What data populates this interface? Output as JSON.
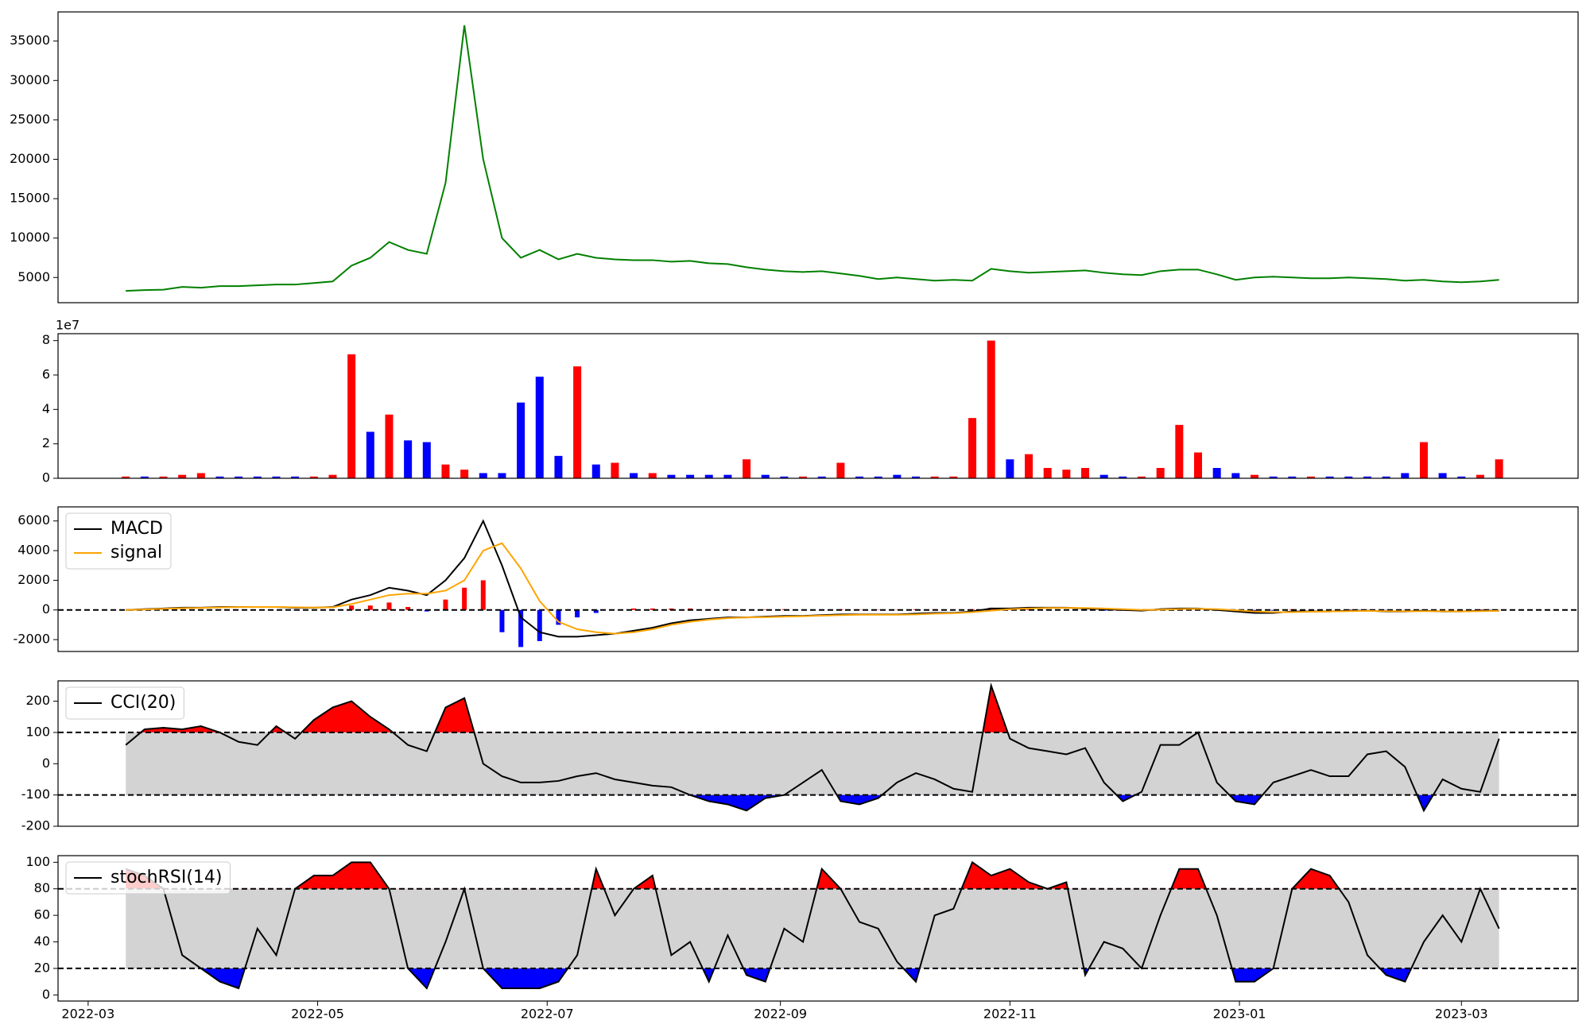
{
  "chart_data": [
    {
      "type": "line",
      "ylim": [
        1800,
        38700
      ],
      "yticks": [
        5000,
        10000,
        15000,
        20000,
        25000,
        30000,
        35000
      ],
      "series": [
        {
          "color": "green",
          "values": [
            3300,
            3400,
            3450,
            3800,
            3700,
            3900,
            3900,
            4000,
            4100,
            4100,
            4300,
            4500,
            6500,
            7500,
            9500,
            8500,
            8000,
            17000,
            37000,
            20000,
            10000,
            7500,
            8500,
            7300,
            8000,
            7500,
            7300,
            7200,
            7200,
            7000,
            7100,
            6800,
            6700,
            6300,
            6000,
            5800,
            5700,
            5800,
            5500,
            5200,
            4800,
            5000,
            4800,
            4600,
            4700,
            4600,
            6100,
            5800,
            5600,
            5700,
            5800,
            5900,
            5600,
            5400,
            5300,
            5800,
            6000,
            6000,
            5400,
            4700,
            5000,
            5100,
            5000,
            4900,
            4900,
            5000,
            4900,
            4800,
            4600,
            4700,
            4500,
            4400,
            4500,
            4700
          ]
        }
      ]
    },
    {
      "type": "bar",
      "offset_text": "1e7",
      "ylim": [
        0,
        8.4
      ],
      "yticks": [
        0,
        2,
        4,
        6,
        8
      ],
      "values": [
        0.1,
        0.1,
        0.1,
        0.2,
        0.3,
        0.1,
        0.1,
        0.1,
        0.1,
        0.1,
        0.1,
        0.2,
        7.2,
        2.7,
        3.7,
        2.2,
        2.1,
        0.8,
        0.5,
        0.3,
        0.3,
        4.4,
        5.9,
        1.3,
        6.5,
        0.8,
        0.9,
        0.3,
        0.3,
        0.2,
        0.2,
        0.2,
        0.2,
        1.1,
        0.2,
        0.1,
        0.1,
        0.1,
        0.9,
        0.1,
        0.1,
        0.2,
        0.1,
        0.1,
        0.1,
        3.5,
        8.0,
        1.1,
        1.4,
        0.6,
        0.5,
        0.6,
        0.2,
        0.1,
        0.1,
        0.6,
        3.1,
        1.5,
        0.6,
        0.3,
        0.2,
        0.1,
        0.1,
        0.1,
        0.1,
        0.1,
        0.1,
        0.1,
        0.3,
        2.1,
        0.3,
        0.1,
        0.2,
        1.1
      ],
      "colors": [
        "red",
        "blue",
        "red",
        "red",
        "red",
        "blue",
        "blue",
        "blue",
        "blue",
        "blue",
        "red",
        "red",
        "red",
        "blue",
        "red",
        "blue",
        "blue",
        "red",
        "red",
        "blue",
        "blue",
        "blue",
        "blue",
        "blue",
        "red",
        "blue",
        "red",
        "blue",
        "red",
        "blue",
        "blue",
        "blue",
        "blue",
        "red",
        "blue",
        "blue",
        "red",
        "blue",
        "red",
        "blue",
        "blue",
        "blue",
        "blue",
        "red",
        "red",
        "red",
        "red",
        "blue",
        "red",
        "red",
        "red",
        "red",
        "blue",
        "blue",
        "red",
        "red",
        "red",
        "red",
        "blue",
        "blue",
        "red",
        "blue",
        "blue",
        "red",
        "blue",
        "blue",
        "blue",
        "blue",
        "blue",
        "red",
        "blue",
        "blue",
        "red",
        "red"
      ]
    },
    {
      "type": "line",
      "ylim": [
        -2800,
        6950
      ],
      "yticks": [
        -2000,
        0,
        2000,
        4000,
        6000
      ],
      "hlines": [
        0
      ],
      "series": [
        {
          "name": "MACD",
          "color": "black",
          "values": [
            0,
            50,
            100,
            150,
            150,
            200,
            200,
            200,
            200,
            150,
            150,
            200,
            700,
            1000,
            1500,
            1300,
            1000,
            2000,
            3500,
            6000,
            3000,
            -500,
            -1500,
            -1800,
            -1800,
            -1700,
            -1600,
            -1400,
            -1200,
            -900,
            -700,
            -600,
            -500,
            -500,
            -450,
            -400,
            -400,
            -350,
            -300,
            -300,
            -300,
            -300,
            -250,
            -200,
            -200,
            -100,
            100,
            100,
            150,
            150,
            150,
            100,
            50,
            0,
            -50,
            50,
            100,
            100,
            0,
            -100,
            -200,
            -200,
            -100,
            -100,
            -100,
            -50,
            -50,
            -100,
            -100,
            -50,
            -100,
            -100,
            -50,
            -50
          ]
        },
        {
          "name": "signal",
          "color": "orange",
          "values": [
            0,
            30,
            80,
            120,
            140,
            170,
            190,
            200,
            200,
            180,
            160,
            180,
            400,
            700,
            1000,
            1100,
            1100,
            1300,
            2000,
            4000,
            4500,
            2800,
            600,
            -800,
            -1300,
            -1500,
            -1600,
            -1500,
            -1300,
            -1000,
            -800,
            -650,
            -550,
            -500,
            -480,
            -450,
            -420,
            -380,
            -350,
            -320,
            -320,
            -320,
            -300,
            -250,
            -220,
            -150,
            -50,
            50,
            100,
            130,
            140,
            130,
            100,
            50,
            0,
            20,
            60,
            80,
            50,
            -20,
            -100,
            -150,
            -150,
            -120,
            -100,
            -80,
            -60,
            -80,
            -90,
            -80,
            -90,
            -100,
            -80,
            -60
          ]
        }
      ],
      "histogram": {
        "positive_color": "red",
        "negative_color": "blue",
        "values": [
          0,
          20,
          20,
          30,
          10,
          30,
          10,
          0,
          0,
          -30,
          -10,
          20,
          300,
          300,
          500,
          200,
          -100,
          700,
          1500,
          2000,
          -1500,
          -2500,
          -2100,
          -1000,
          -500,
          -200,
          0,
          100,
          100,
          100,
          100,
          50,
          50,
          0,
          30,
          50,
          20,
          30,
          50,
          20,
          20,
          20,
          50,
          50,
          20,
          50,
          150,
          50,
          50,
          20,
          10,
          -30,
          -50,
          -50,
          -50,
          30,
          40,
          20,
          -50,
          -80,
          -100,
          -50,
          50,
          20,
          0,
          30,
          10,
          -20,
          -10,
          30,
          -10,
          0,
          30,
          10
        ]
      }
    },
    {
      "type": "line",
      "ylim": [
        -200,
        265
      ],
      "yticks": [
        -200,
        -100,
        0,
        100,
        200
      ],
      "hlines": [
        100,
        -100
      ],
      "band_color": "lightgray",
      "upper_color": "red",
      "lower_color": "blue",
      "series": [
        {
          "name": "CCI(20)",
          "color": "black",
          "values": [
            60,
            110,
            115,
            110,
            120,
            100,
            70,
            60,
            120,
            80,
            140,
            180,
            200,
            150,
            110,
            60,
            40,
            180,
            210,
            0,
            -40,
            -60,
            -60,
            -55,
            -40,
            -30,
            -50,
            -60,
            -70,
            -75,
            -100,
            -120,
            -130,
            -150,
            -110,
            -100,
            -60,
            -20,
            -120,
            -130,
            -110,
            -60,
            -30,
            -50,
            -80,
            -90,
            250,
            80,
            50,
            40,
            30,
            50,
            -60,
            -120,
            -90,
            60,
            60,
            100,
            -60,
            -120,
            -130,
            -60,
            -40,
            -20,
            -40,
            -40,
            30,
            40,
            -10,
            -150,
            -50,
            -80,
            -90,
            80
          ]
        }
      ]
    },
    {
      "type": "line",
      "ylim": [
        -4.6,
        105
      ],
      "yticks": [
        0,
        20,
        40,
        60,
        80,
        100
      ],
      "hlines": [
        80,
        20
      ],
      "band_color": "lightgray",
      "upper_color": "red",
      "lower_color": "blue",
      "series": [
        {
          "name": "stochRSI(14)",
          "color": "black",
          "values": [
            95,
            90,
            80,
            30,
            20,
            10,
            5,
            50,
            30,
            80,
            90,
            90,
            100,
            100,
            80,
            20,
            5,
            40,
            80,
            20,
            5,
            5,
            5,
            10,
            30,
            95,
            60,
            80,
            90,
            30,
            40,
            10,
            45,
            15,
            10,
            50,
            40,
            95,
            80,
            55,
            50,
            25,
            10,
            60,
            65,
            100,
            90,
            95,
            85,
            80,
            85,
            15,
            40,
            35,
            20,
            60,
            95,
            95,
            60,
            10,
            10,
            20,
            80,
            95,
            90,
            70,
            30,
            15,
            10,
            40,
            60,
            40,
            80,
            50
          ]
        }
      ],
      "x": [
        10,
        15,
        20,
        25,
        30,
        35,
        40,
        45,
        50,
        55,
        60,
        65,
        70,
        75,
        80,
        85,
        90,
        95,
        100,
        105,
        110,
        115,
        120,
        125,
        130,
        135,
        140,
        145,
        150,
        155,
        160,
        165,
        170,
        175,
        180,
        185,
        190,
        195,
        200,
        205,
        210,
        215,
        220,
        225,
        230,
        235,
        240,
        245,
        250,
        255,
        260,
        265,
        270,
        275,
        280,
        285,
        290,
        295,
        300,
        305,
        310,
        315,
        320,
        325,
        330,
        335,
        340,
        345,
        350,
        355,
        360,
        365,
        370,
        375
      ],
      "xlim": [
        -8,
        396
      ],
      "xticks": [
        {
          "value": 0,
          "label": "2022-03"
        },
        {
          "value": 61,
          "label": "2022-05"
        },
        {
          "value": 122,
          "label": "2022-07"
        },
        {
          "value": 184,
          "label": "2022-09"
        },
        {
          "value": 245,
          "label": "2022-11"
        },
        {
          "value": 306,
          "label": "2023-01"
        },
        {
          "value": 365,
          "label": "2023-03"
        }
      ]
    }
  ]
}
